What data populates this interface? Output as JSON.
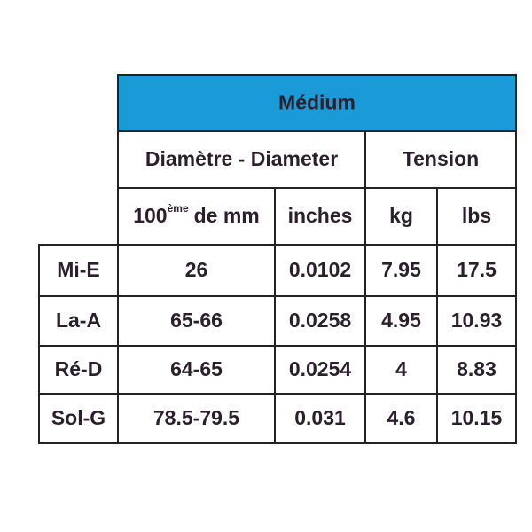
{
  "table": {
    "title": "Médium",
    "groups": [
      "Diamètre - Diameter",
      "Tension"
    ],
    "subheaders": [
      {
        "base": "100",
        "sup": "ème",
        "rest": "de mm"
      },
      "inches",
      "kg",
      "lbs"
    ],
    "rows": [
      {
        "label": "Mi-E",
        "cells": [
          "26",
          "0.0102",
          "7.95",
          "17.5"
        ]
      },
      {
        "label": "La-A",
        "cells": [
          "65-66",
          "0.0258",
          "4.95",
          "10.93"
        ]
      },
      {
        "label": "Ré-D",
        "cells": [
          "64-65",
          "0.0254",
          "4",
          "8.83"
        ]
      },
      {
        "label": "Sol-G",
        "cells": [
          "78.5-79.5",
          "0.031",
          "4.6",
          "10.15"
        ]
      }
    ]
  }
}
